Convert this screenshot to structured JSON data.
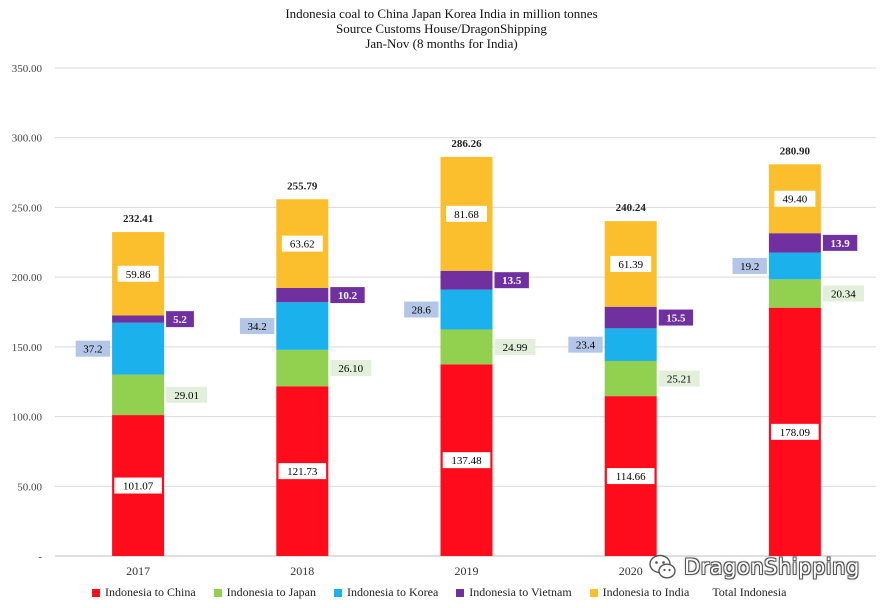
{
  "title_lines": [
    "Indonesia coal to China Japan Korea India in million tonnes",
    "Source Customs House/DragonShipping",
    "Jan-Nov (8 months for India)"
  ],
  "watermark": {
    "text": "DragonShipping",
    "icon": "wechat-icon"
  },
  "chart_data": {
    "type": "bar",
    "stacked": true,
    "title": "Indonesia coal to China Japan Korea India in million tonnes",
    "subtitle": [
      "Source Customs House/DragonShipping",
      "Jan-Nov (8 months for India)"
    ],
    "categories": [
      "2017",
      "2018",
      "2019",
      "2020",
      ""
    ],
    "ylim": [
      0,
      350
    ],
    "yticks": [
      0,
      50,
      100,
      150,
      200,
      250,
      300,
      350
    ],
    "ytick_labels": [
      "-",
      "50.00",
      "100.00",
      "150.00",
      "200.00",
      "250.00",
      "300.00",
      "350.00"
    ],
    "grid": true,
    "legend_position": "bottom",
    "series": [
      {
        "name": "Indonesia to China",
        "color": "#fe0c1c",
        "values": [
          101.07,
          121.73,
          137.48,
          114.66,
          178.09
        ],
        "labels": [
          "101.07",
          "121.73",
          "137.48",
          "114.66",
          "178.09"
        ],
        "label_style": "white-inside"
      },
      {
        "name": "Indonesia to Japan",
        "color": "#92d050",
        "values": [
          29.01,
          26.1,
          24.99,
          25.21,
          20.34
        ],
        "labels": [
          "29.01",
          "26.10",
          "24.99",
          "25.21",
          "20.34"
        ],
        "label_style": "green-right"
      },
      {
        "name": "Indonesia to Korea",
        "color": "#1ab1ed",
        "values": [
          37.2,
          34.2,
          28.6,
          23.4,
          19.2
        ],
        "labels": [
          "37.2",
          "34.2",
          "28.6",
          "23.4",
          "19.2"
        ],
        "label_style": "blue-left"
      },
      {
        "name": "Indonesia to Vietnam",
        "color": "#7030a0",
        "values": [
          5.2,
          10.2,
          13.5,
          15.5,
          13.9
        ],
        "labels": [
          "5.2",
          "10.2",
          "13.5",
          "15.5",
          "13.9"
        ],
        "label_style": "purple-right"
      },
      {
        "name": "Indonesia to India",
        "color": "#fbbf2e",
        "values": [
          59.86,
          63.62,
          81.68,
          61.39,
          49.4
        ],
        "labels": [
          "59.86",
          "63.62",
          "81.68",
          "61.39",
          "49.40"
        ],
        "label_style": "white-inside"
      }
    ],
    "totals": {
      "name": "Total Indonesia",
      "values": [
        232.41,
        255.79,
        286.26,
        240.24,
        280.9
      ],
      "labels": [
        "232.41",
        "255.79",
        "286.26",
        "240.24",
        "280.90"
      ]
    }
  }
}
